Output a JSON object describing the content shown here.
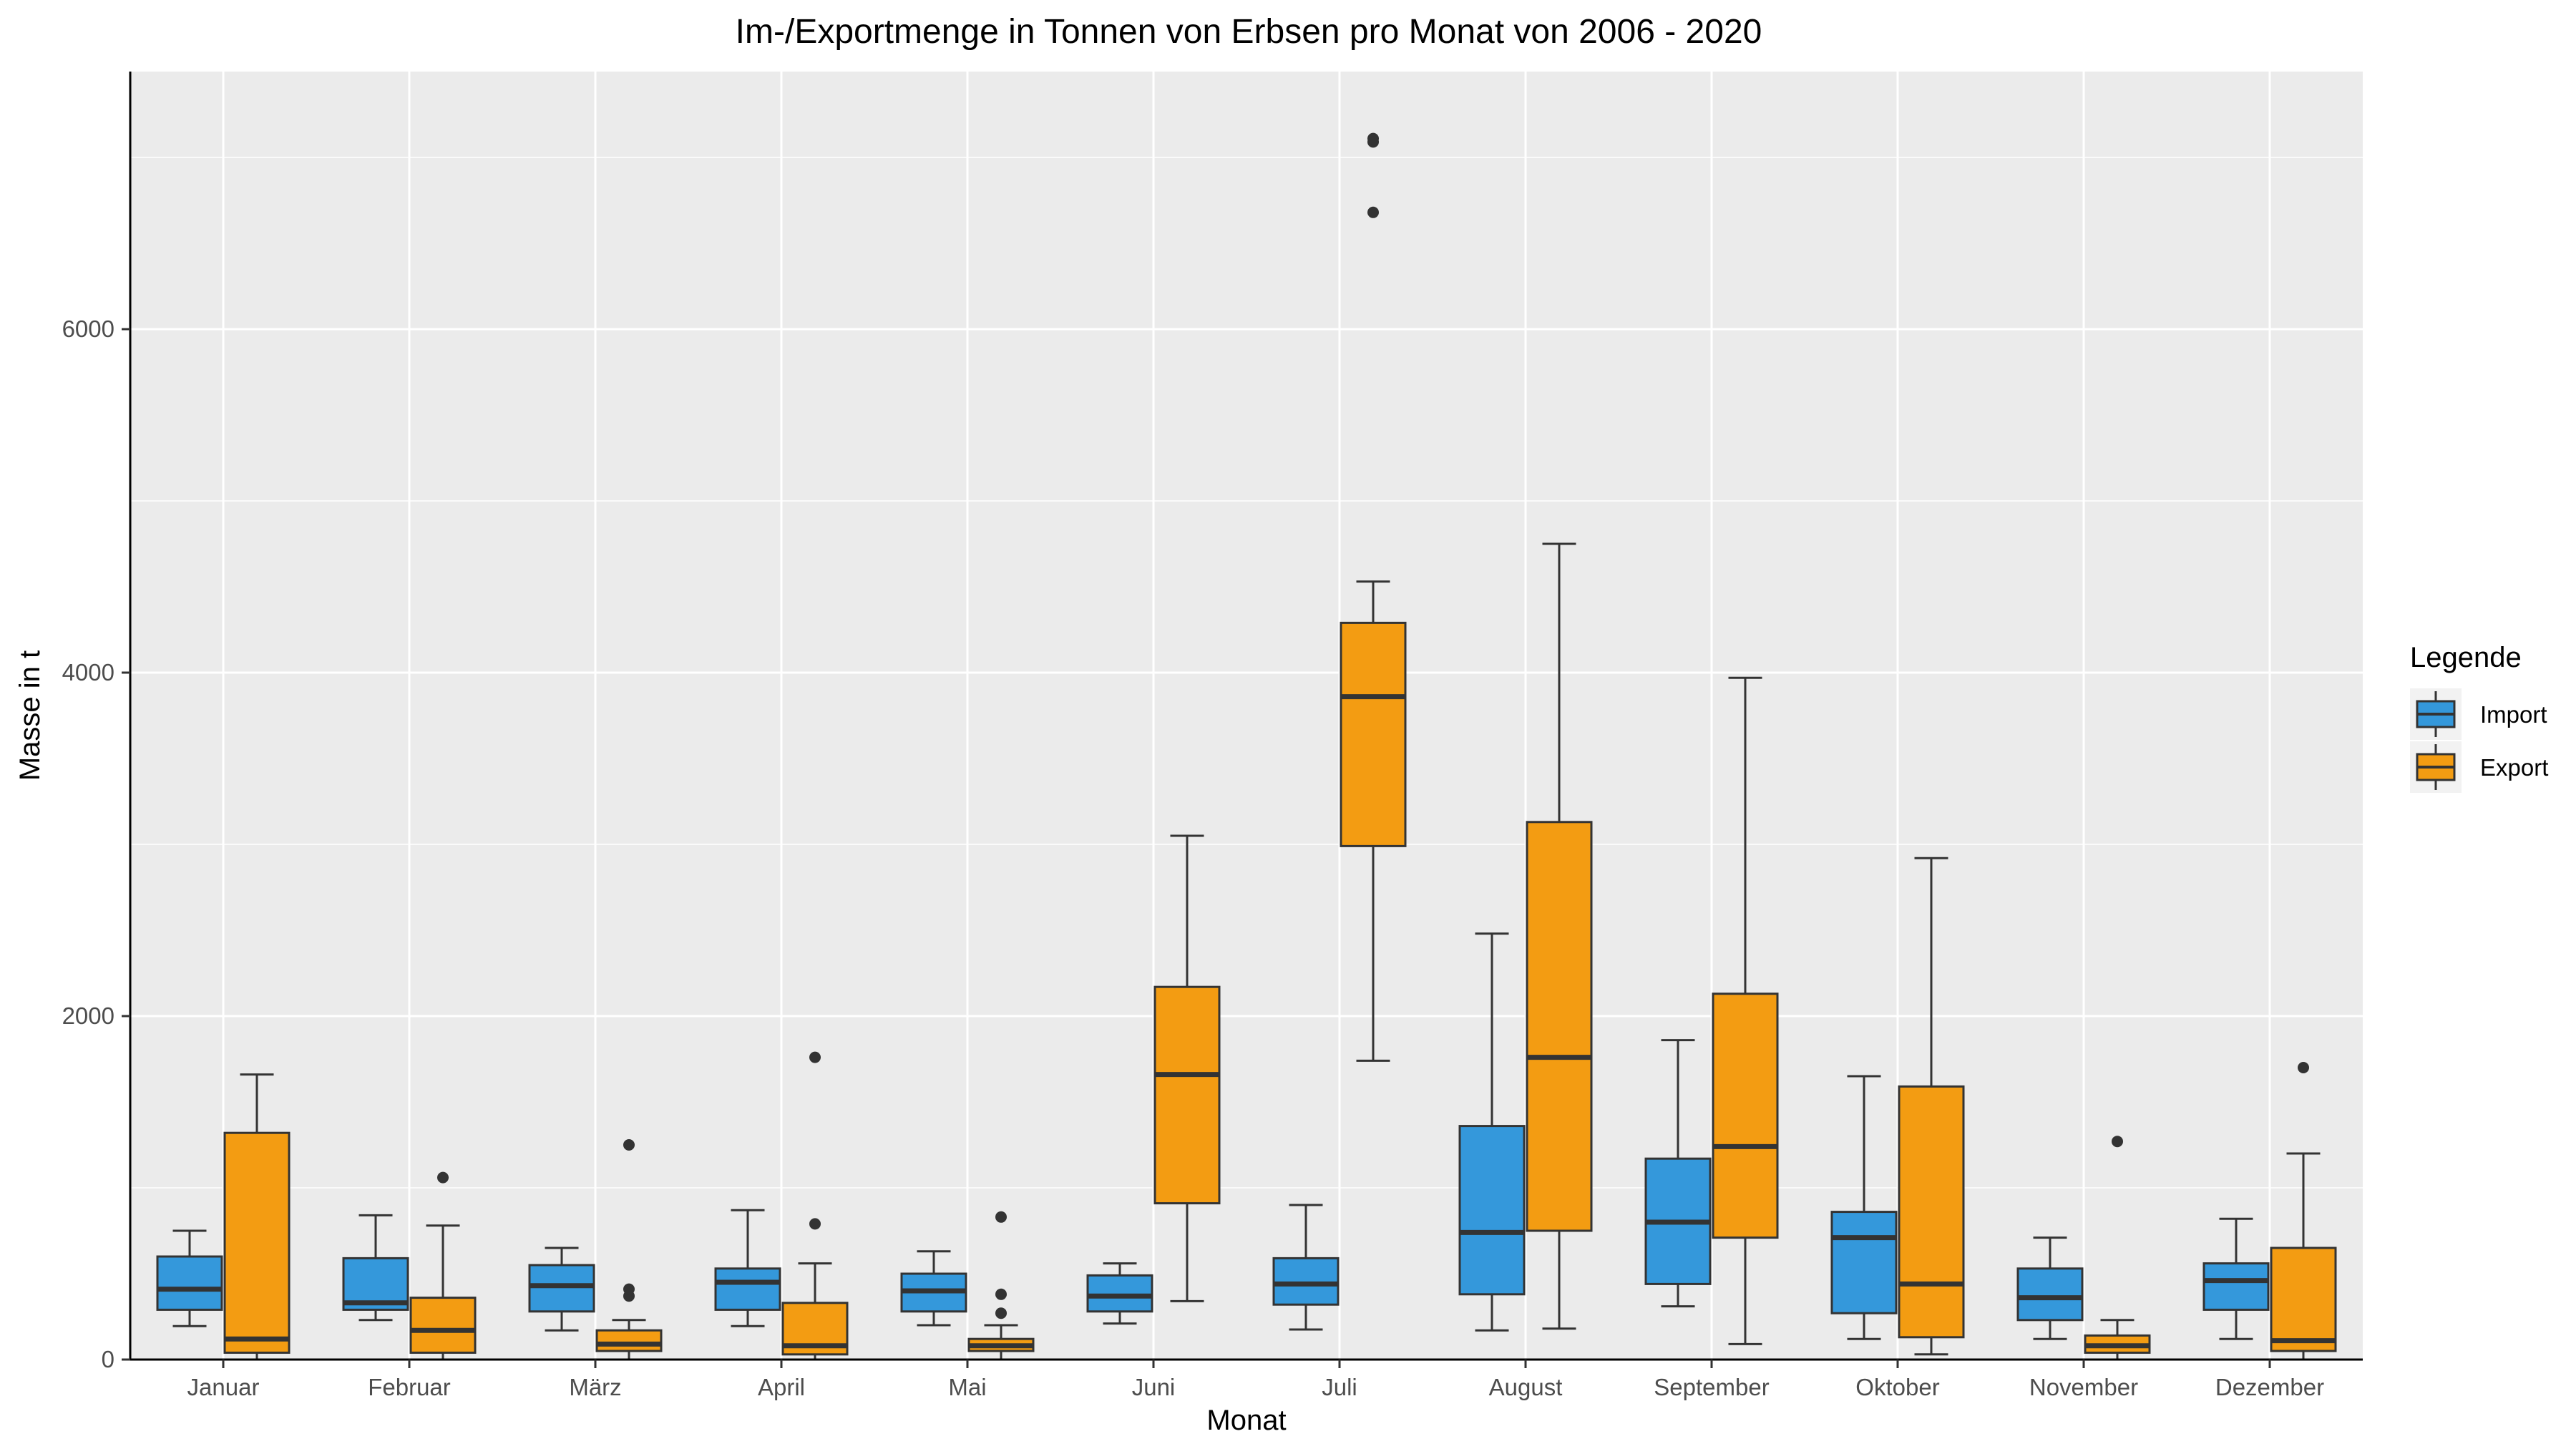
{
  "chart_data": {
    "type": "boxplot",
    "title": "Im-/Exportmenge in Tonnen von Erbsen pro Monat von 2006 - 2020",
    "xlabel": "Monat",
    "ylabel": "Masse in t",
    "ylim": [
      0,
      7500
    ],
    "yticks": [
      0,
      2000,
      4000,
      6000
    ],
    "y_tick_labels": [
      "0",
      "2000",
      "4000",
      "6000"
    ],
    "grid": true,
    "legend": {
      "title": "Legende",
      "position": "right"
    },
    "categories": [
      "Januar",
      "Februar",
      "März",
      "April",
      "Mai",
      "Juni",
      "Juli",
      "August",
      "September",
      "Oktober",
      "November",
      "Dezember"
    ],
    "series": [
      {
        "name": "Import",
        "color": "#3498db",
        "boxes": [
          {
            "min": 195,
            "q1": 290,
            "median": 410,
            "q3": 600,
            "max": 750,
            "outliers": []
          },
          {
            "min": 230,
            "q1": 290,
            "median": 330,
            "q3": 590,
            "max": 840,
            "outliers": []
          },
          {
            "min": 170,
            "q1": 280,
            "median": 430,
            "q3": 550,
            "max": 650,
            "outliers": []
          },
          {
            "min": 195,
            "q1": 290,
            "median": 450,
            "q3": 530,
            "max": 870,
            "outliers": []
          },
          {
            "min": 200,
            "q1": 280,
            "median": 400,
            "q3": 500,
            "max": 630,
            "outliers": []
          },
          {
            "min": 210,
            "q1": 280,
            "median": 370,
            "q3": 490,
            "max": 560,
            "outliers": []
          },
          {
            "min": 175,
            "q1": 320,
            "median": 440,
            "q3": 590,
            "max": 900,
            "outliers": []
          },
          {
            "min": 170,
            "q1": 380,
            "median": 740,
            "q3": 1360,
            "max": 2480,
            "outliers": []
          },
          {
            "min": 310,
            "q1": 440,
            "median": 800,
            "q3": 1170,
            "max": 1860,
            "outliers": []
          },
          {
            "min": 120,
            "q1": 270,
            "median": 710,
            "q3": 860,
            "max": 1650,
            "outliers": []
          },
          {
            "min": 120,
            "q1": 230,
            "median": 360,
            "q3": 530,
            "max": 710,
            "outliers": []
          },
          {
            "min": 120,
            "q1": 290,
            "median": 460,
            "q3": 560,
            "max": 820,
            "outliers": []
          }
        ]
      },
      {
        "name": "Export",
        "color": "#f39c12",
        "boxes": [
          {
            "min": 0,
            "q1": 40,
            "median": 120,
            "q3": 1320,
            "max": 1660,
            "outliers": []
          },
          {
            "min": 0,
            "q1": 40,
            "median": 170,
            "q3": 360,
            "max": 780,
            "outliers": [
              1060
            ]
          },
          {
            "min": 0,
            "q1": 50,
            "median": 90,
            "q3": 170,
            "max": 230,
            "outliers": [
              370,
              410,
              1250
            ]
          },
          {
            "min": 0,
            "q1": 30,
            "median": 80,
            "q3": 330,
            "max": 560,
            "outliers": [
              790,
              1760
            ]
          },
          {
            "min": 0,
            "q1": 50,
            "median": 80,
            "q3": 120,
            "max": 200,
            "outliers": [
              270,
              380,
              830
            ]
          },
          {
            "min": 340,
            "q1": 910,
            "median": 1660,
            "q3": 2170,
            "max": 3050,
            "outliers": []
          },
          {
            "min": 1740,
            "q1": 2990,
            "median": 3860,
            "q3": 4290,
            "max": 4530,
            "outliers": [
              6680,
              7090,
              7110
            ]
          },
          {
            "min": 180,
            "q1": 750,
            "median": 1760,
            "q3": 3130,
            "max": 4750,
            "outliers": []
          },
          {
            "min": 90,
            "q1": 710,
            "median": 1240,
            "q3": 2130,
            "max": 3970,
            "outliers": []
          },
          {
            "min": 30,
            "q1": 130,
            "median": 440,
            "q3": 1590,
            "max": 2920,
            "outliers": []
          },
          {
            "min": 0,
            "q1": 40,
            "median": 80,
            "q3": 140,
            "max": 230,
            "outliers": [
              1270
            ]
          },
          {
            "min": 0,
            "q1": 50,
            "median": 110,
            "q3": 650,
            "max": 1200,
            "outliers": [
              1700
            ]
          }
        ]
      }
    ]
  }
}
